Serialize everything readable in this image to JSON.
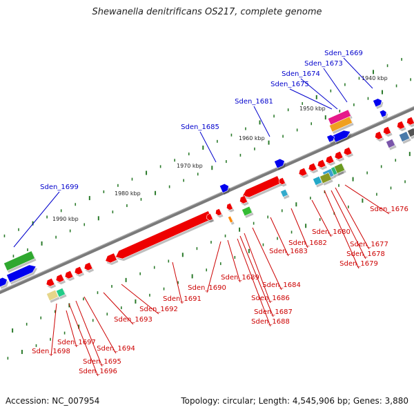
{
  "title": "Shewanella denitrificans OS217, complete genome",
  "footer": {
    "accession": "Accession: NC_007954",
    "summary": "Topology: circular; Length: 4,545,906 bp; Genes: 3,880"
  },
  "colors": {
    "forward_label": "#0000cc",
    "reverse_label": "#cc0000",
    "forward_gene": "#0000ee",
    "reverse_gene": "#ee0000",
    "backbone": "#808080",
    "tick": "#2a7a2a"
  },
  "scale": [
    "1940 kbp",
    "1950 kbp",
    "1960 kbp",
    "1970 kbp",
    "1980 kbp",
    "1990 kbp"
  ],
  "forward_genes": [
    "Sden_1669",
    "Sden_1673",
    "Sden_1674",
    "Sden_1675",
    "Sden_1681",
    "Sden_1685",
    "Sden_1699"
  ],
  "reverse_genes": [
    "Sden_1676",
    "Sden_1677",
    "Sden_1678",
    "Sden_1679",
    "Sden_1680",
    "Sden_1682",
    "Sden_1683",
    "Sden_1684",
    "Sden_1686",
    "Sden_1687",
    "Sden_1688",
    "Sden_1689",
    "Sden_1690",
    "Sden_1691",
    "Sden_1692",
    "Sden_1693",
    "Sden_1694",
    "Sden_1695",
    "Sden_1696",
    "Sden_1697",
    "Sden_1698"
  ]
}
